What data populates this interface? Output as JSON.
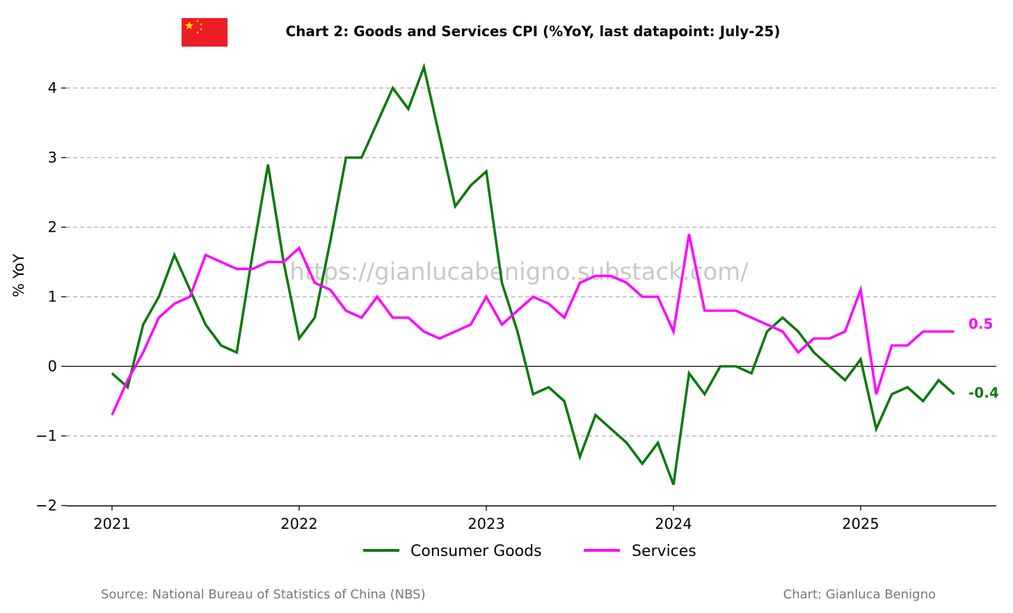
{
  "chart_data": {
    "type": "line",
    "title": "Chart 2: Goods and Services CPI (%YoY, last datapoint: July-25)",
    "ylabel": "% YoY",
    "xlabel": "",
    "ylim": [
      -2,
      4.4
    ],
    "yticks": [
      -2,
      -1,
      0,
      1,
      2,
      3,
      4
    ],
    "ytick_labels": [
      "−2",
      "−1",
      "0",
      "1",
      "2",
      "3",
      "4"
    ],
    "xticks": [
      2021,
      2022,
      2023,
      2024,
      2025
    ],
    "xtick_labels": [
      "2021",
      "2022",
      "2023",
      "2024",
      "2025"
    ],
    "grid": "horizontal dashed",
    "start": "2021-01",
    "series": [
      {
        "name": "Consumer Goods",
        "color": "#0a7a0a",
        "end_label": "-0.4",
        "values": [
          -0.1,
          -0.3,
          0.6,
          1.0,
          1.6,
          1.1,
          0.6,
          0.3,
          0.2,
          1.6,
          2.9,
          1.5,
          0.4,
          0.7,
          1.8,
          3.0,
          3.0,
          3.5,
          4.0,
          3.7,
          4.3,
          3.3,
          2.3,
          2.6,
          2.8,
          1.2,
          0.5,
          -0.4,
          -0.3,
          -0.5,
          -1.3,
          -0.7,
          -0.9,
          -1.1,
          -1.4,
          -1.1,
          -1.7,
          -0.1,
          -0.4,
          0.0,
          0.0,
          -0.1,
          0.5,
          0.7,
          0.5,
          0.2,
          0.0,
          -0.2,
          0.1,
          -0.9,
          -0.4,
          -0.3,
          -0.5,
          -0.2,
          -0.4
        ]
      },
      {
        "name": "Services",
        "color": "#ff00ff",
        "end_label": "0.5",
        "values": [
          -0.7,
          -0.2,
          0.2,
          0.7,
          0.9,
          1.0,
          1.6,
          1.5,
          1.4,
          1.4,
          1.5,
          1.5,
          1.7,
          1.2,
          1.1,
          0.8,
          0.7,
          1.0,
          0.7,
          0.7,
          0.5,
          0.4,
          0.5,
          0.6,
          1.0,
          0.6,
          0.8,
          1.0,
          0.9,
          0.7,
          1.2,
          1.3,
          1.3,
          1.2,
          1.0,
          1.0,
          0.5,
          1.9,
          0.8,
          0.8,
          0.8,
          0.7,
          0.6,
          0.5,
          0.2,
          0.4,
          0.4,
          0.5,
          1.1,
          -0.4,
          0.3,
          0.3,
          0.5,
          0.5,
          0.5
        ]
      }
    ],
    "legend": [
      "Consumer Goods",
      "Services"
    ],
    "legend_position": "bottom-center"
  },
  "watermark": "https://gianlucabenigno.substack.com/",
  "footer": {
    "source": "Source: National Bureau of Statistics of China (NBS)",
    "credit": "Chart: Gianluca Benigno"
  },
  "flag": {
    "name": "china-flag",
    "field_color": "#ee1c25",
    "star_color": "#ffde00"
  }
}
